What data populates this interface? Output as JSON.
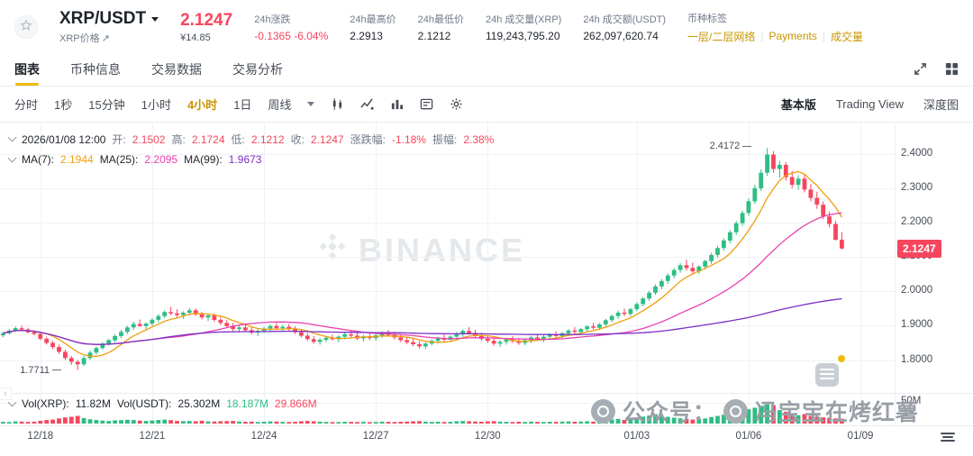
{
  "header": {
    "symbol": "XRP/USDT",
    "price_link": "XRP价格",
    "last_price": "2.1247",
    "fiat_price": "¥14.85",
    "stats": [
      {
        "label": "24h涨跌",
        "value": "-0.1365 -6.04%",
        "negative": true
      },
      {
        "label": "24h最高价",
        "value": "2.2913"
      },
      {
        "label": "24h最低价",
        "value": "2.1212"
      },
      {
        "label": "24h 成交量(XRP)",
        "value": "119,243,795.20"
      },
      {
        "label": "24h 成交额(USDT)",
        "value": "262,097,620.74"
      }
    ],
    "tags_label": "币种标签",
    "tags": [
      "一层/二层网络",
      "Payments",
      "成交量"
    ]
  },
  "tabs": [
    {
      "label": "图表",
      "active": true
    },
    {
      "label": "币种信息",
      "active": false
    },
    {
      "label": "交易数据",
      "active": false
    },
    {
      "label": "交易分析",
      "active": false
    }
  ],
  "toolbar": {
    "intervals": [
      "分时",
      "1秒",
      "15分钟",
      "1小时",
      "4小时",
      "1日",
      "周线"
    ],
    "active_interval": "4小时",
    "modes": [
      "基本版",
      "Trading View",
      "深度图"
    ],
    "active_mode": "基本版"
  },
  "ohlc": {
    "time": "2026/01/08 12:00",
    "open_label": "开:",
    "open": "2.1502",
    "high_label": "高:",
    "high": "2.1724",
    "low_label": "低:",
    "low": "2.1212",
    "close_label": "收:",
    "close": "2.1247",
    "change_label": "涨跌幅:",
    "change": "-1.18%",
    "amplitude_label": "振幅:",
    "amplitude": "2.38%"
  },
  "ma": {
    "ma7_label": "MA(7):",
    "ma7": "2.1944",
    "ma25_label": "MA(25):",
    "ma25": "2.2095",
    "ma99_label": "MA(99):",
    "ma99": "1.9673"
  },
  "volume": {
    "vol_xrp_label": "Vol(XRP):",
    "vol_xrp": "11.82M",
    "vol_usdt_label": "Vol(USDT):",
    "vol_usdt": "25.302M",
    "vol_buy": "18.187M",
    "vol_sell": "29.866M",
    "axis_label": "50M"
  },
  "chart": {
    "brand": "BINANCE",
    "price_tag": "2.1247",
    "high_label": "2.4172",
    "low_label": "1.7711",
    "overlay_part1": "公众号：",
    "overlay_part2": "冯宝宝在烤红薯"
  },
  "colors": {
    "up": "#2EBD85",
    "down": "#F6465D",
    "accent": "#F0B90B",
    "gold_text": "#C99402",
    "ma7": "#EF9E0D",
    "ma25": "#E843AE",
    "ma99": "#7D2EC4"
  },
  "chart_data": {
    "type": "candlestick",
    "interval": "4h",
    "y_axis": {
      "min": 1.715,
      "max": 2.47,
      "ticks": [
        {
          "v": 2.4,
          "label": "2.4000"
        },
        {
          "v": 2.3,
          "label": "2.3000"
        },
        {
          "v": 2.2,
          "label": "2.2000"
        },
        {
          "v": 2.1,
          "label": "2.1000"
        },
        {
          "v": 2.0,
          "label": "2.0000"
        },
        {
          "v": 1.9,
          "label": "1.9000"
        },
        {
          "v": 1.8,
          "label": "1.8000"
        }
      ]
    },
    "x_ticks": [
      {
        "label": "12/18",
        "index": 6
      },
      {
        "label": "12/21",
        "index": 24
      },
      {
        "label": "12/24",
        "index": 42
      },
      {
        "label": "12/27",
        "index": 60
      },
      {
        "label": "12/30",
        "index": 78
      },
      {
        "label": "01/03",
        "index": 102
      },
      {
        "label": "01/06",
        "index": 120
      },
      {
        "label": "01/09",
        "index": 138
      }
    ],
    "total_slots": 144,
    "last_price": 2.1247,
    "volume_axis_max": 50,
    "annotations": {
      "high": {
        "index": 123,
        "value": 2.4172,
        "label": "2.4172"
      },
      "low": {
        "index": 12,
        "value": 1.7711,
        "label": "1.7711"
      }
    },
    "candles": [
      [
        1.872,
        1.882,
        1.866,
        1.878
      ],
      [
        1.878,
        1.89,
        1.874,
        1.886
      ],
      [
        1.886,
        1.898,
        1.882,
        1.893
      ],
      [
        1.893,
        1.9,
        1.885,
        1.889
      ],
      [
        1.889,
        1.894,
        1.878,
        1.881
      ],
      [
        1.881,
        1.887,
        1.872,
        1.876
      ],
      [
        1.876,
        1.88,
        1.858,
        1.862
      ],
      [
        1.862,
        1.868,
        1.845,
        1.85
      ],
      [
        1.85,
        1.856,
        1.832,
        1.838
      ],
      [
        1.838,
        1.845,
        1.818,
        1.824
      ],
      [
        1.824,
        1.83,
        1.8,
        1.806
      ],
      [
        1.806,
        1.812,
        1.786,
        1.795
      ],
      [
        1.795,
        1.801,
        1.7711,
        1.788
      ],
      [
        1.788,
        1.812,
        1.782,
        1.806
      ],
      [
        1.806,
        1.828,
        1.8,
        1.822
      ],
      [
        1.822,
        1.84,
        1.816,
        1.835
      ],
      [
        1.835,
        1.852,
        1.83,
        1.848
      ],
      [
        1.848,
        1.862,
        1.842,
        1.858
      ],
      [
        1.858,
        1.875,
        1.852,
        1.87
      ],
      [
        1.87,
        1.888,
        1.864,
        1.882
      ],
      [
        1.882,
        1.9,
        1.876,
        1.895
      ],
      [
        1.895,
        1.912,
        1.888,
        1.905
      ],
      [
        1.905,
        1.918,
        1.896,
        1.899
      ],
      [
        1.899,
        1.91,
        1.89,
        1.906
      ],
      [
        1.906,
        1.922,
        1.9,
        1.917
      ],
      [
        1.917,
        1.934,
        1.91,
        1.928
      ],
      [
        1.928,
        1.945,
        1.922,
        1.94
      ],
      [
        1.94,
        1.955,
        1.93,
        1.936
      ],
      [
        1.936,
        1.948,
        1.925,
        1.931
      ],
      [
        1.931,
        1.942,
        1.92,
        1.938
      ],
      [
        1.938,
        1.952,
        1.93,
        1.945
      ],
      [
        1.945,
        1.95,
        1.928,
        1.933
      ],
      [
        1.933,
        1.94,
        1.918,
        1.924
      ],
      [
        1.924,
        1.935,
        1.914,
        1.93
      ],
      [
        1.93,
        1.936,
        1.912,
        1.917
      ],
      [
        1.917,
        1.925,
        1.902,
        1.908
      ],
      [
        1.908,
        1.916,
        1.894,
        1.899
      ],
      [
        1.899,
        1.908,
        1.885,
        1.89
      ],
      [
        1.89,
        1.9,
        1.88,
        1.895
      ],
      [
        1.895,
        1.903,
        1.882,
        1.887
      ],
      [
        1.887,
        1.896,
        1.875,
        1.88
      ],
      [
        1.88,
        1.89,
        1.87,
        1.885
      ],
      [
        1.885,
        1.897,
        1.878,
        1.892
      ],
      [
        1.892,
        1.904,
        1.885,
        1.899
      ],
      [
        1.899,
        1.908,
        1.888,
        1.893
      ],
      [
        1.893,
        1.902,
        1.882,
        1.897
      ],
      [
        1.897,
        1.905,
        1.886,
        1.89
      ],
      [
        1.89,
        1.898,
        1.876,
        1.881
      ],
      [
        1.881,
        1.888,
        1.866,
        1.871
      ],
      [
        1.871,
        1.879,
        1.856,
        1.861
      ],
      [
        1.861,
        1.87,
        1.848,
        1.853
      ],
      [
        1.853,
        1.864,
        1.845,
        1.859
      ],
      [
        1.859,
        1.87,
        1.852,
        1.865
      ],
      [
        1.865,
        1.874,
        1.856,
        1.861
      ],
      [
        1.861,
        1.872,
        1.852,
        1.868
      ],
      [
        1.868,
        1.88,
        1.86,
        1.875
      ],
      [
        1.875,
        1.886,
        1.866,
        1.871
      ],
      [
        1.871,
        1.88,
        1.858,
        1.863
      ],
      [
        1.863,
        1.874,
        1.854,
        1.869
      ],
      [
        1.869,
        1.878,
        1.858,
        1.864
      ],
      [
        1.864,
        1.876,
        1.856,
        1.872
      ],
      [
        1.872,
        1.884,
        1.864,
        1.879
      ],
      [
        1.879,
        1.888,
        1.868,
        1.873
      ],
      [
        1.873,
        1.882,
        1.86,
        1.866
      ],
      [
        1.866,
        1.875,
        1.852,
        1.858
      ],
      [
        1.858,
        1.868,
        1.846,
        1.852
      ],
      [
        1.852,
        1.862,
        1.84,
        1.846
      ],
      [
        1.846,
        1.856,
        1.834,
        1.84
      ],
      [
        1.84,
        1.852,
        1.832,
        1.848
      ],
      [
        1.848,
        1.86,
        1.842,
        1.856
      ],
      [
        1.856,
        1.868,
        1.848,
        1.863
      ],
      [
        1.863,
        1.874,
        1.854,
        1.859
      ],
      [
        1.859,
        1.872,
        1.852,
        1.868
      ],
      [
        1.868,
        1.882,
        1.86,
        1.877
      ],
      [
        1.877,
        1.89,
        1.868,
        1.885
      ],
      [
        1.885,
        1.896,
        1.874,
        1.879
      ],
      [
        1.879,
        1.888,
        1.864,
        1.87
      ],
      [
        1.87,
        1.88,
        1.856,
        1.862
      ],
      [
        1.862,
        1.872,
        1.85,
        1.856
      ],
      [
        1.856,
        1.866,
        1.842,
        1.848
      ],
      [
        1.848,
        1.858,
        1.838,
        1.853
      ],
      [
        1.853,
        1.864,
        1.845,
        1.86
      ],
      [
        1.86,
        1.87,
        1.85,
        1.855
      ],
      [
        1.855,
        1.865,
        1.844,
        1.85
      ],
      [
        1.85,
        1.862,
        1.843,
        1.858
      ],
      [
        1.858,
        1.87,
        1.85,
        1.866
      ],
      [
        1.866,
        1.876,
        1.856,
        1.862
      ],
      [
        1.862,
        1.872,
        1.852,
        1.868
      ],
      [
        1.868,
        1.878,
        1.858,
        1.874
      ],
      [
        1.874,
        1.884,
        1.864,
        1.87
      ],
      [
        1.87,
        1.882,
        1.862,
        1.878
      ],
      [
        1.878,
        1.89,
        1.87,
        1.886
      ],
      [
        1.886,
        1.896,
        1.876,
        1.882
      ],
      [
        1.882,
        1.894,
        1.874,
        1.89
      ],
      [
        1.89,
        1.902,
        1.882,
        1.898
      ],
      [
        1.898,
        1.908,
        1.888,
        1.894
      ],
      [
        1.894,
        1.908,
        1.888,
        1.904
      ],
      [
        1.904,
        1.92,
        1.898,
        1.916
      ],
      [
        1.916,
        1.932,
        1.91,
        1.928
      ],
      [
        1.928,
        1.944,
        1.92,
        1.938
      ],
      [
        1.938,
        1.95,
        1.928,
        1.934
      ],
      [
        1.934,
        1.952,
        1.928,
        1.948
      ],
      [
        1.948,
        1.968,
        1.942,
        1.963
      ],
      [
        1.963,
        1.984,
        1.956,
        1.979
      ],
      [
        1.979,
        2.002,
        1.972,
        1.996
      ],
      [
        1.996,
        2.02,
        1.99,
        2.014
      ],
      [
        2.014,
        2.036,
        2.006,
        2.03
      ],
      [
        2.03,
        2.052,
        2.022,
        2.046
      ],
      [
        2.046,
        2.068,
        2.038,
        2.062
      ],
      [
        2.062,
        2.082,
        2.054,
        2.076
      ],
      [
        2.076,
        2.092,
        2.06,
        2.068
      ],
      [
        2.068,
        2.084,
        2.052,
        2.058
      ],
      [
        2.058,
        2.076,
        2.05,
        2.072
      ],
      [
        2.072,
        2.092,
        2.064,
        2.088
      ],
      [
        2.088,
        2.112,
        2.08,
        2.106
      ],
      [
        2.106,
        2.132,
        2.098,
        2.126
      ],
      [
        2.126,
        2.154,
        2.118,
        2.148
      ],
      [
        2.148,
        2.178,
        2.14,
        2.172
      ],
      [
        2.172,
        2.205,
        2.164,
        2.198
      ],
      [
        2.198,
        2.235,
        2.19,
        2.228
      ],
      [
        2.228,
        2.27,
        2.22,
        2.262
      ],
      [
        2.262,
        2.31,
        2.254,
        2.3
      ],
      [
        2.3,
        2.355,
        2.292,
        2.345
      ],
      [
        2.345,
        2.4172,
        2.336,
        2.398
      ],
      [
        2.398,
        2.408,
        2.345,
        2.356
      ],
      [
        2.356,
        2.38,
        2.33,
        2.368
      ],
      [
        2.368,
        2.376,
        2.322,
        2.332
      ],
      [
        2.332,
        2.35,
        2.3,
        2.31
      ],
      [
        2.31,
        2.338,
        2.296,
        2.328
      ],
      [
        2.328,
        2.342,
        2.288,
        2.296
      ],
      [
        2.296,
        2.312,
        2.262,
        2.272
      ],
      [
        2.272,
        2.29,
        2.24,
        2.252
      ],
      [
        2.252,
        2.262,
        2.21,
        2.218
      ],
      [
        2.218,
        2.232,
        2.186,
        2.196
      ],
      [
        2.196,
        2.205,
        2.148,
        2.1502
      ],
      [
        2.1502,
        2.1724,
        2.1212,
        2.1247
      ]
    ],
    "volumes": [
      4.1,
      3.8,
      5.2,
      4.6,
      3.9,
      4.3,
      6.8,
      8.4,
      9.6,
      12.3,
      14.8,
      16.2,
      18.5,
      13.2,
      10.4,
      8.6,
      7.2,
      6.4,
      7.8,
      8.2,
      9.1,
      8.4,
      6.9,
      6.2,
      7.4,
      8.8,
      9.6,
      8.2,
      6.4,
      5.8,
      6.2,
      5.4,
      6.8,
      5.2,
      4.8,
      5.6,
      5.8,
      6.4,
      4.9,
      4.2,
      4.6,
      3.8,
      4.4,
      5.2,
      4.8,
      4.1,
      3.6,
      4.2,
      5.6,
      6.2,
      5.4,
      4.6,
      3.9,
      3.4,
      3.8,
      4.4,
      4.0,
      3.6,
      4.2,
      3.5,
      3.9,
      4.6,
      4.2,
      3.8,
      4.4,
      4.8,
      5.4,
      5.8,
      4.6,
      4.0,
      4.4,
      3.8,
      4.2,
      5.6,
      6.2,
      5.4,
      4.8,
      4.4,
      5.2,
      5.8,
      4.6,
      4.2,
      3.8,
      4.4,
      4.0,
      4.6,
      4.2,
      3.8,
      4.4,
      4.0,
      4.6,
      5.2,
      4.4,
      4.8,
      5.6,
      4.6,
      6.4,
      8.2,
      9.8,
      11.4,
      8.6,
      9.2,
      14.6,
      16.8,
      19.4,
      22.6,
      18.2,
      16.4,
      14.2,
      12.8,
      11.4,
      9.6,
      10.8,
      12.4,
      15.6,
      18.4,
      21.2,
      24.8,
      28.4,
      31.2,
      34.6,
      38.2,
      42.8,
      46.4,
      44.2,
      32.6,
      28.4,
      24.6,
      20.2,
      22.8,
      18.4,
      16.2,
      14.8,
      13.6,
      12.4,
      11.82
    ]
  }
}
